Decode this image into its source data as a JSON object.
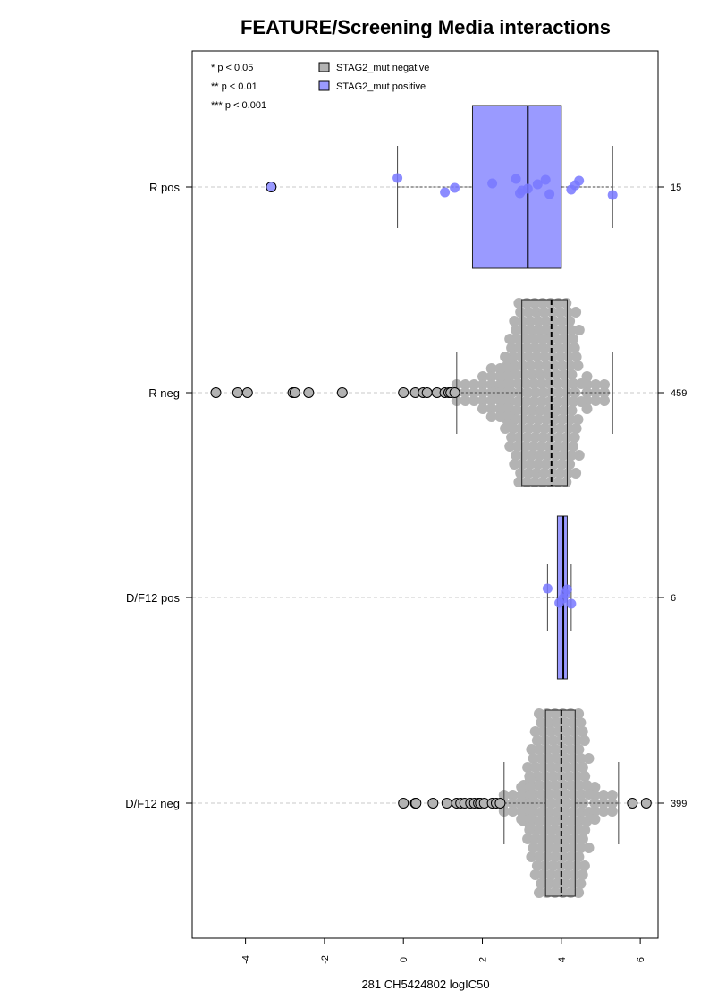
{
  "chart_data": {
    "type": "scatter",
    "subtype": "horizontal boxplot with beeswarm points",
    "title": "FEATURE/Screening Media interactions",
    "xlabel": "281 CH5424802 logIC50",
    "ylabel": "",
    "xlim": [
      -5.35,
      6.45
    ],
    "x_ticks": [
      -4,
      -2,
      0,
      2,
      4,
      6
    ],
    "x_tick_labels": [
      "-4",
      "-2",
      "0",
      "2",
      "4",
      "6"
    ],
    "grid": "dashed horizontal line through each group",
    "legend_position": "top-left",
    "significance_legend": [
      "* p < 0.05",
      "** p < 0.01",
      "*** p < 0.001"
    ],
    "legend": [
      {
        "label": "STAG2_mut negative",
        "color": "#b3b3b3"
      },
      {
        "label": "STAG2_mut positive",
        "color": "#9a9aff"
      }
    ],
    "colors": {
      "negative_box": "#b3b3b3",
      "negative_point": "#b3b3b3",
      "positive_box": "#9a9aff",
      "positive_point": "#7878ff"
    },
    "groups": [
      {
        "label": "R pos",
        "count": "15",
        "mutation": "positive",
        "box": {
          "whisker_low": -0.15,
          "q1": 1.75,
          "median": 3.15,
          "q3": 4.0,
          "whisker_high": 5.3
        },
        "outliers": [
          -3.35
        ],
        "points": [
          -0.15,
          1.05,
          1.3,
          2.25,
          2.85,
          2.95,
          3.15,
          3.4,
          3.6,
          3.7,
          4.25,
          4.35,
          4.45,
          5.3,
          3.0
        ]
      },
      {
        "label": "R neg",
        "count": "459",
        "mutation": "negative",
        "box": {
          "whisker_low": 1.35,
          "q1": 3.0,
          "median": 3.75,
          "q3": 4.15,
          "whisker_high": 5.3
        },
        "outliers": [
          -4.75,
          -4.2,
          -3.95,
          -2.8,
          -2.75,
          -2.4,
          -1.55,
          0.0,
          0.3,
          0.5,
          0.6,
          0.85,
          1.05,
          1.15,
          1.2,
          1.3
        ],
        "points": []
      },
      {
        "label": "D/F12 pos",
        "count": "6",
        "mutation": "positive",
        "box": {
          "whisker_low": 3.65,
          "q1": 3.9,
          "median": 4.05,
          "q3": 4.15,
          "whisker_high": 4.25
        },
        "outliers": [],
        "points": [
          3.65,
          3.95,
          4.05,
          4.1,
          4.15,
          4.25
        ]
      },
      {
        "label": "D/F12 neg",
        "count": "399",
        "mutation": "negative",
        "box": {
          "whisker_low": 2.55,
          "q1": 3.6,
          "median": 4.0,
          "q3": 4.35,
          "whisker_high": 5.45
        },
        "outliers": [
          0.0,
          0.3,
          0.32,
          0.75,
          1.1,
          1.35,
          1.45,
          1.55,
          1.7,
          1.8,
          1.9,
          1.95,
          2.05,
          2.25,
          2.35,
          2.45,
          5.8,
          6.15
        ],
        "points": []
      }
    ]
  }
}
